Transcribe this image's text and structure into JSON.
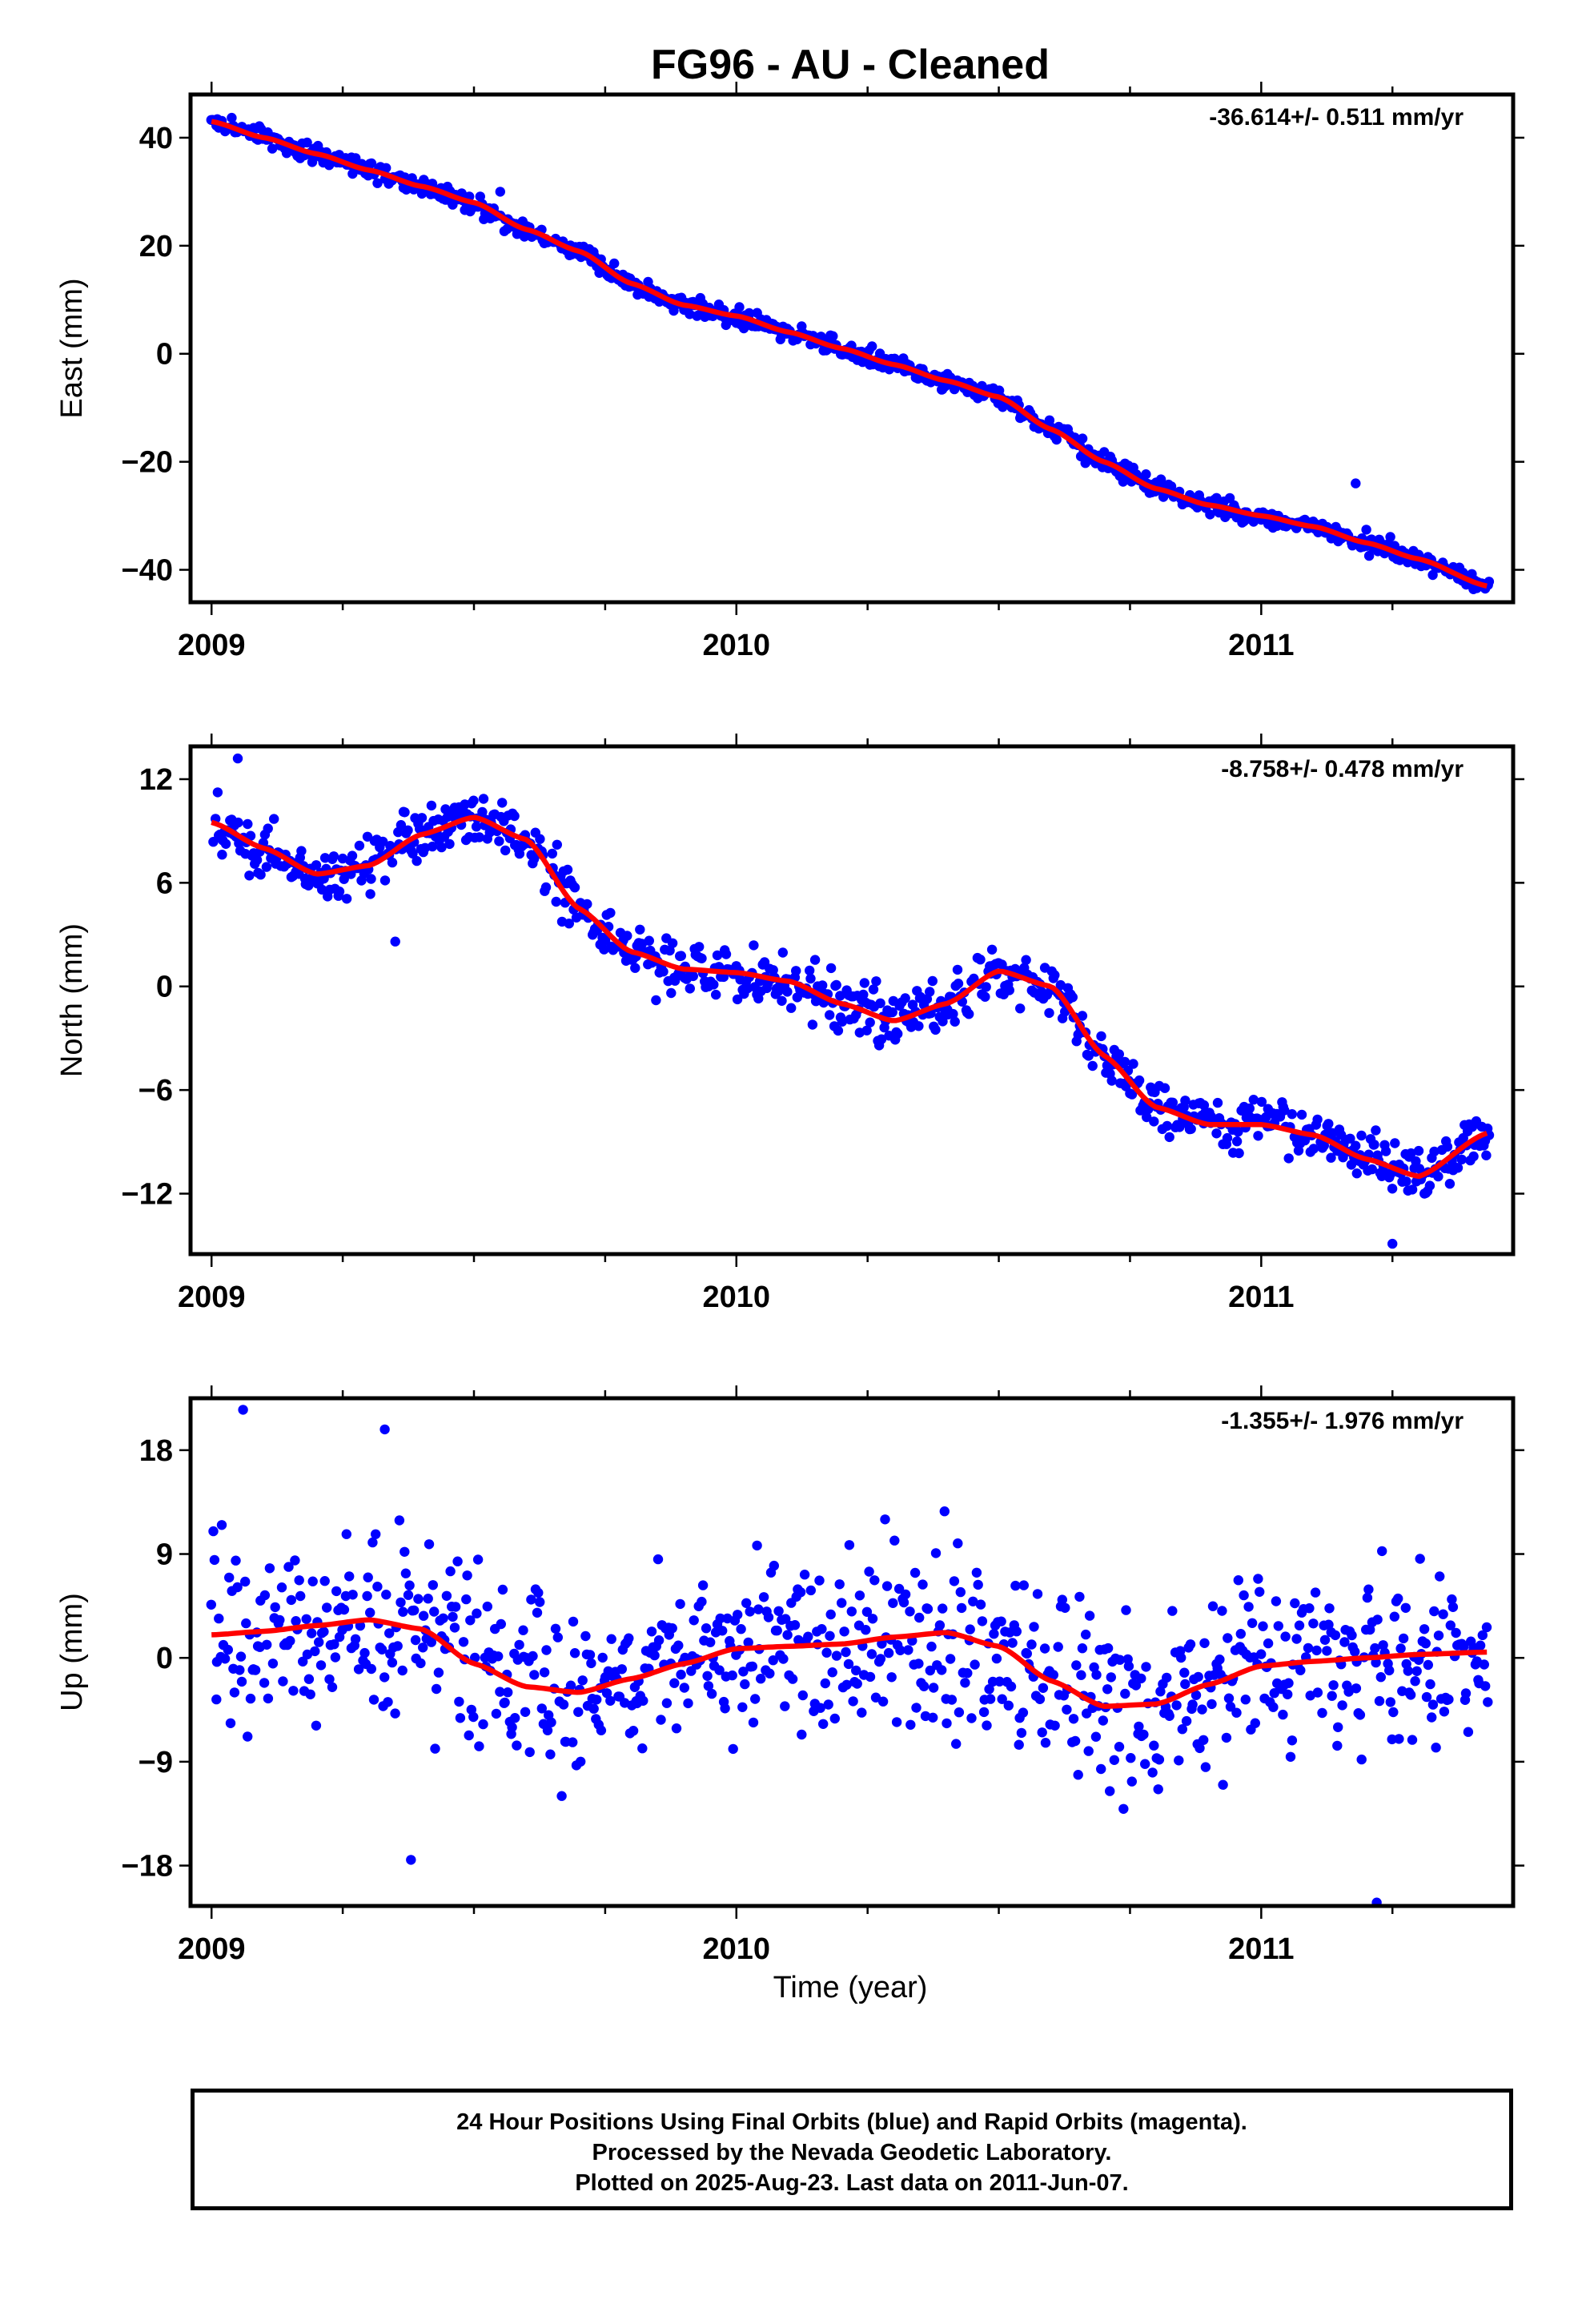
{
  "title": "FG96  - AU - Cleaned",
  "xlabel": "Time (year)",
  "footer": {
    "line1": "24 Hour Positions Using Final Orbits (blue) and Rapid Orbits (magenta).",
    "line2": "Processed by the Nevada Geodetic Laboratory.",
    "line3": "Plotted on 2025-Aug-23. Last data on 2011-Jun-07."
  },
  "colors": {
    "points": "#0000ff",
    "fit": "#ff0000",
    "frame": "#000000"
  },
  "chart_data": [
    {
      "type": "scatter",
      "component": "east",
      "ylabel": "East (mm)",
      "rate_label": "-36.614+/- 0.511 mm/yr",
      "xlim": [
        2008.96,
        2011.48
      ],
      "ylim": [
        -46,
        48
      ],
      "xticks": [
        2009,
        2010,
        2011
      ],
      "yticks": [
        40,
        20,
        0,
        -20,
        -40
      ],
      "ytick_labels": [
        "40",
        "20",
        "0",
        "−20",
        "−40"
      ],
      "noise_mm": 1.2,
      "fit": {
        "x": [
          2009.0,
          2009.1,
          2009.2,
          2009.3,
          2009.4,
          2009.5,
          2009.6,
          2009.7,
          2009.8,
          2009.9,
          2010.0,
          2010.1,
          2010.2,
          2010.3,
          2010.4,
          2010.5,
          2010.6,
          2010.7,
          2010.8,
          2010.9,
          2011.0,
          2011.1,
          2011.2,
          2011.3,
          2011.43
        ],
        "y": [
          43,
          40,
          37,
          34,
          31,
          28,
          23,
          19,
          13,
          9,
          7,
          4,
          1,
          -2,
          -5,
          -8,
          -14,
          -20,
          -25,
          -28,
          -30,
          -32,
          -35,
          -38,
          -43
        ]
      },
      "outliers": [
        {
          "x": 2009.55,
          "y": 30
        },
        {
          "x": 2011.18,
          "y": -24
        }
      ]
    },
    {
      "type": "scatter",
      "component": "north",
      "ylabel": "North (mm)",
      "rate_label": "-8.758+/- 0.478 mm/yr",
      "xlim": [
        2008.96,
        2011.48
      ],
      "ylim": [
        -15.5,
        13.9
      ],
      "xticks": [
        2009,
        2010,
        2011
      ],
      "yticks": [
        12,
        6,
        0,
        -6,
        -12
      ],
      "ytick_labels": [
        "12",
        "6",
        "0",
        "−6",
        "−12"
      ],
      "noise_mm": 1.1,
      "fit": {
        "x": [
          2009.0,
          2009.1,
          2009.2,
          2009.3,
          2009.4,
          2009.5,
          2009.6,
          2009.7,
          2009.8,
          2009.9,
          2010.0,
          2010.1,
          2010.2,
          2010.3,
          2010.4,
          2010.5,
          2010.6,
          2010.7,
          2010.8,
          2010.9,
          2011.0,
          2011.1,
          2011.2,
          2011.3,
          2011.43
        ],
        "y": [
          9.5,
          8.0,
          6.5,
          7.0,
          8.8,
          9.8,
          8.5,
          4.5,
          2.0,
          1.0,
          0.8,
          0.3,
          -1.0,
          -2.0,
          -1.0,
          0.9,
          0.0,
          -4.0,
          -7.0,
          -8.0,
          -8.0,
          -8.6,
          -10.0,
          -11.0,
          -8.5
        ]
      },
      "outliers": [
        {
          "x": 2009.05,
          "y": 13.2
        },
        {
          "x": 2009.35,
          "y": 2.6
        },
        {
          "x": 2011.25,
          "y": -14.9
        }
      ]
    },
    {
      "type": "scatter",
      "component": "up",
      "ylabel": "Up (mm)",
      "rate_label": "-1.355+/- 1.976 mm/yr",
      "xlim": [
        2008.96,
        2011.48
      ],
      "ylim": [
        -21.5,
        22.5
      ],
      "xticks": [
        2009,
        2010,
        2011
      ],
      "yticks": [
        18,
        9,
        0,
        -9,
        -18
      ],
      "ytick_labels": [
        "18",
        "9",
        "0",
        "−9",
        "−18"
      ],
      "noise_mm": 5.5,
      "fit": {
        "x": [
          2009.0,
          2009.1,
          2009.2,
          2009.3,
          2009.4,
          2009.5,
          2009.6,
          2009.7,
          2009.8,
          2009.9,
          2010.0,
          2010.1,
          2010.2,
          2010.3,
          2010.4,
          2010.5,
          2010.6,
          2010.7,
          2010.8,
          2010.9,
          2011.0,
          2011.1,
          2011.2,
          2011.3,
          2011.43
        ],
        "y": [
          2.0,
          2.3,
          2.8,
          3.3,
          2.5,
          -0.5,
          -2.5,
          -3.0,
          -1.8,
          -0.5,
          0.8,
          1.0,
          1.2,
          1.8,
          2.2,
          1.0,
          -2.0,
          -4.2,
          -4.0,
          -2.3,
          -0.7,
          -0.3,
          0.0,
          0.3,
          0.5
        ]
      },
      "outliers": [
        {
          "x": 2009.06,
          "y": 21.5
        },
        {
          "x": 2009.33,
          "y": 19.8
        },
        {
          "x": 2011.22,
          "y": -21.2
        },
        {
          "x": 2009.38,
          "y": -17.5
        }
      ]
    }
  ]
}
